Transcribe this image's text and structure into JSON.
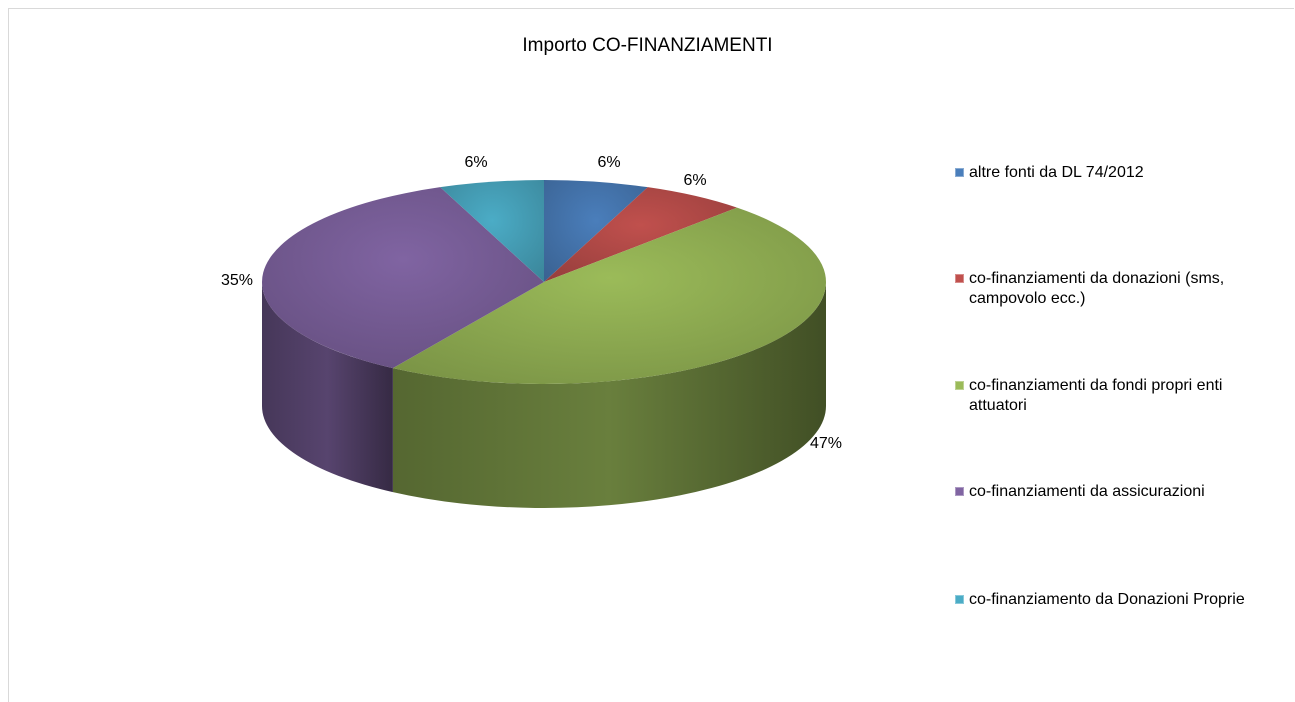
{
  "chart_data": {
    "type": "pie",
    "title": "Importo CO-FINANZIAMENTI",
    "legend_position": "right",
    "style": "3d",
    "slices": [
      {
        "name": "altre fonti da DL 74/2012",
        "value": 6,
        "label": "6%",
        "color": "#4a7ebb"
      },
      {
        "name": "co-finanziamenti da donazioni (sms, campovolo ecc.)",
        "value": 6,
        "label": "6%",
        "color": "#c0504d"
      },
      {
        "name": "co-finanziamenti da fondi propri enti attuatori",
        "value": 47,
        "label": "47%",
        "color": "#9bbb59"
      },
      {
        "name": "co-finanziamenti da assicurazioni",
        "value": 35,
        "label": "35%",
        "color": "#8064a2"
      },
      {
        "name": "co-finanziamento da Donazioni Proprie",
        "value": 6,
        "label": "6%",
        "color": "#4bacc6"
      }
    ]
  }
}
